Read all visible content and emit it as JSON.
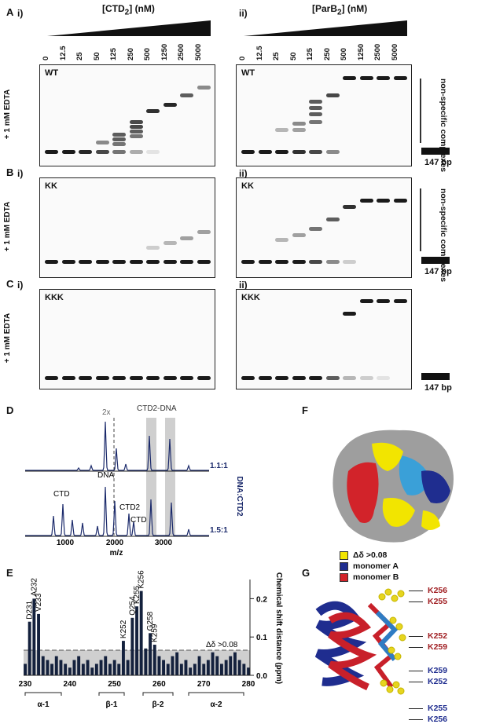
{
  "panel_A": {
    "letter": "A",
    "left_sub": "i)",
    "right_sub": "ii)",
    "left_title": "[CTD",
    "left_title_sub": "2",
    "left_title_unit": "] (nM)",
    "right_title": "[ParB",
    "right_title_sub": "2",
    "right_title_unit": "] (nM)",
    "gel_label": "WT"
  },
  "panel_B": {
    "letter": "B",
    "left_sub": "i)",
    "right_sub": "ii)",
    "gel_label": "KK"
  },
  "panel_C": {
    "letter": "C",
    "left_sub": "i)",
    "right_sub": "ii)",
    "gel_label": "KKK"
  },
  "concentrations": [
    "0",
    "12.5",
    "25",
    "50",
    "125",
    "250",
    "500",
    "1250",
    "2500",
    "5000"
  ],
  "edta_label": "+ 1 mM EDTA",
  "nonspecific_label": "non-specific complexes",
  "bp_label": "147 bp",
  "panel_D": {
    "letter": "D",
    "twox": "2x",
    "complex_label": "CTD2-DNA",
    "top_ratio": "1.1:1",
    "bottom_ratio": "1.5:1",
    "side_label": "DNA:CTD2",
    "peak_labels": {
      "dna": "DNA",
      "ctd": "CTD",
      "ctd2": "CTD2",
      "ctd_b": "CTD"
    },
    "xlabel": "m/z",
    "xticks": [
      "1000",
      "2000",
      "3000"
    ]
  },
  "panel_E": {
    "letter": "E",
    "ylabel": "Chemical shift distance (ppm)",
    "threshold_label": "Δδ >0.08",
    "yticks": [
      "0.0",
      "0.1",
      "0.2"
    ],
    "xticks": [
      "230",
      "240",
      "250",
      "260",
      "270",
      "280"
    ],
    "structure": [
      "α-1",
      "β-1",
      "β-2",
      "α-2"
    ],
    "labeled_residues": [
      "D231",
      "A232",
      "V233",
      "K252",
      "Q254",
      "K255",
      "K256",
      "G258",
      "K259"
    ]
  },
  "chart_data": {
    "type": "bar",
    "xlabel": "",
    "ylabel": "Chemical shift distance (ppm)",
    "ylim": [
      0,
      0.25
    ],
    "threshold": 0.08,
    "x": [
      230,
      231,
      232,
      233,
      234,
      235,
      236,
      237,
      238,
      239,
      240,
      241,
      242,
      243,
      244,
      245,
      246,
      247,
      248,
      249,
      250,
      251,
      252,
      253,
      254,
      255,
      256,
      257,
      258,
      259,
      260,
      261,
      262,
      263,
      264,
      265,
      266,
      267,
      268,
      269,
      270,
      271,
      272,
      273,
      274,
      275,
      276,
      277,
      278,
      279,
      280
    ],
    "values": [
      0.03,
      0.14,
      0.2,
      0.16,
      0.05,
      0.04,
      0.03,
      0.05,
      0.04,
      0.03,
      0.02,
      0.04,
      0.05,
      0.03,
      0.04,
      0.02,
      0.03,
      0.04,
      0.05,
      0.03,
      0.04,
      0.03,
      0.09,
      0.04,
      0.15,
      0.18,
      0.22,
      0.07,
      0.11,
      0.08,
      0.05,
      0.04,
      0.03,
      0.05,
      0.06,
      0.03,
      0.04,
      0.02,
      0.03,
      0.05,
      0.03,
      0.04,
      0.06,
      0.05,
      0.03,
      0.04,
      0.05,
      0.06,
      0.04,
      0.03,
      0.02
    ]
  },
  "panel_F": {
    "letter": "F",
    "legend": [
      {
        "label": "Δδ >0.08",
        "color": "#f2e500"
      },
      {
        "label": "monomer A",
        "color": "#1f2d8f"
      },
      {
        "label": "monomer B",
        "color": "#d2232a"
      }
    ]
  },
  "panel_G": {
    "letter": "G",
    "residues": [
      {
        "label": "K256",
        "color": "#a01e22"
      },
      {
        "label": "K255",
        "color": "#a01e22"
      },
      {
        "label": "K252",
        "color": "#a01e22"
      },
      {
        "label": "K259",
        "color": "#a01e22"
      },
      {
        "label": "K259",
        "color": "#1f2d8f"
      },
      {
        "label": "K252",
        "color": "#1f2d8f"
      },
      {
        "label": "K255",
        "color": "#1f2d8f"
      },
      {
        "label": "K256",
        "color": "#1f2d8f"
      }
    ]
  }
}
